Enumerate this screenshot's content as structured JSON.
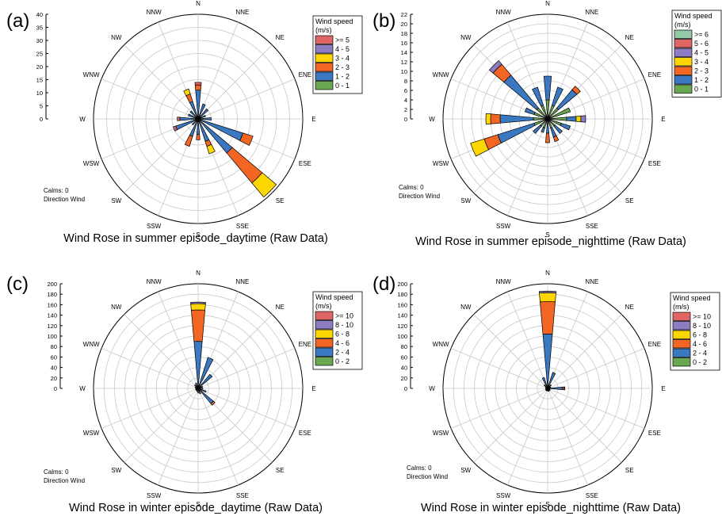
{
  "colors": {
    "green": "#6aa84f",
    "blue": "#3a78c2",
    "orange": "#f26522",
    "yellow": "#ffd700",
    "purple": "#8e7cc3",
    "red": "#e06666",
    "teal": "#93c9a6",
    "grid": "#c8c8c8",
    "axis": "#000000"
  },
  "compass": [
    "N",
    "NNE",
    "NE",
    "ENE",
    "E",
    "ESE",
    "SE",
    "SSE",
    "S",
    "SSW",
    "SW",
    "WSW",
    "W",
    "WNW",
    "NW",
    "NNW"
  ],
  "chart_data": [
    {
      "panel_label": "(a)",
      "type": "wind-rose",
      "title": "Wind Rose in summer episode_daytime (Raw Data)",
      "legend_title": [
        "Wind speed",
        "(m/s)"
      ],
      "calms_text": "Calms: 0",
      "direction_text": "Direction Wind",
      "rmax": 40,
      "rings": [
        5,
        10,
        15,
        20,
        25,
        30,
        35,
        40
      ],
      "ticks": [
        0,
        5,
        10,
        15,
        20,
        25,
        30,
        35,
        40
      ],
      "bins": [
        {
          "label": ">= 5",
          "color": "red"
        },
        {
          "label": "4 - 5",
          "color": "purple"
        },
        {
          "label": "3 - 4",
          "color": "yellow"
        },
        {
          "label": "2 - 3",
          "color": "orange"
        },
        {
          "label": "1 - 2",
          "color": "blue"
        },
        {
          "label": "0 - 1",
          "color": "green"
        }
      ],
      "series": [
        {
          "direction": "N",
          "values": [
            1,
            10,
            2,
            0,
            0,
            1
          ]
        },
        {
          "direction": "NNE",
          "values": [
            1,
            5,
            0,
            0,
            0,
            0
          ]
        },
        {
          "direction": "NE",
          "values": [
            1,
            4,
            0,
            0,
            0,
            0
          ]
        },
        {
          "direction": "ENE",
          "values": [
            1,
            2,
            0,
            0,
            0,
            0
          ]
        },
        {
          "direction": "E",
          "values": [
            1,
            4,
            0,
            0,
            0,
            0
          ]
        },
        {
          "direction": "ESE",
          "values": [
            1,
            17,
            4,
            0,
            0,
            0
          ]
        },
        {
          "direction": "SE",
          "values": [
            1,
            16,
            15,
            7,
            0,
            0
          ]
        },
        {
          "direction": "SSE",
          "values": [
            1,
            8,
            2,
            3,
            0,
            0
          ]
        },
        {
          "direction": "S",
          "values": [
            1,
            5,
            2,
            0,
            0,
            0
          ]
        },
        {
          "direction": "SSW",
          "values": [
            1,
            6,
            4,
            0,
            0,
            0
          ]
        },
        {
          "direction": "SW",
          "values": [
            1,
            2,
            0,
            0,
            0,
            0
          ]
        },
        {
          "direction": "WSW",
          "values": [
            1,
            8,
            0,
            0,
            0,
            1
          ]
        },
        {
          "direction": "W",
          "values": [
            1,
            6,
            0,
            0,
            0,
            1
          ]
        },
        {
          "direction": "WNW",
          "values": [
            1,
            3,
            0,
            0,
            0,
            0
          ]
        },
        {
          "direction": "NW",
          "values": [
            1,
            3,
            0,
            0,
            0,
            0
          ]
        },
        {
          "direction": "NNW",
          "values": [
            1,
            6,
            3,
            2,
            0,
            0
          ]
        }
      ]
    },
    {
      "panel_label": "(b)",
      "type": "wind-rose",
      "title": "Wind Rose in summer episode_nighttime (Raw Data)",
      "legend_title": [
        "Wind speed",
        "(m/s)"
      ],
      "calms_text": "Calms: 0",
      "direction_text": "Direction Wind",
      "rmax": 22,
      "rings": [
        2,
        4,
        6,
        8,
        10,
        12,
        14,
        16,
        18,
        20,
        22
      ],
      "ticks": [
        0,
        2,
        4,
        6,
        8,
        10,
        12,
        14,
        16,
        18,
        20,
        22
      ],
      "bins": [
        {
          "label": ">= 6",
          "color": "teal"
        },
        {
          "label": "5 - 6",
          "color": "red"
        },
        {
          "label": "4 - 5",
          "color": "purple"
        },
        {
          "label": "3 - 4",
          "color": "yellow"
        },
        {
          "label": "2 - 3",
          "color": "orange"
        },
        {
          "label": "1 - 2",
          "color": "blue"
        },
        {
          "label": "0 - 1",
          "color": "green"
        }
      ],
      "series": [
        {
          "direction": "N",
          "values": [
            4,
            5,
            0,
            0,
            0,
            0,
            0
          ]
        },
        {
          "direction": "NNE",
          "values": [
            3,
            4,
            0,
            0,
            0,
            0,
            0
          ]
        },
        {
          "direction": "NE",
          "values": [
            3,
            5,
            1,
            0,
            0,
            0,
            0
          ]
        },
        {
          "direction": "ENE",
          "values": [
            5,
            0,
            0,
            0,
            0,
            0,
            0
          ]
        },
        {
          "direction": "E",
          "values": [
            4,
            2,
            0,
            1,
            1,
            0,
            0
          ]
        },
        {
          "direction": "ESE",
          "values": [
            3,
            2,
            0,
            0,
            0,
            0,
            0
          ]
        },
        {
          "direction": "SE",
          "values": [
            2,
            2,
            0,
            0,
            0,
            0,
            0
          ]
        },
        {
          "direction": "SSE",
          "values": [
            2,
            2,
            1,
            0,
            0,
            0,
            0
          ]
        },
        {
          "direction": "S",
          "values": [
            1,
            2,
            2,
            0,
            0,
            0,
            0
          ]
        },
        {
          "direction": "SSW",
          "values": [
            2,
            1,
            0,
            0,
            0,
            0,
            0
          ]
        },
        {
          "direction": "SW",
          "values": [
            2,
            2,
            0,
            0,
            0,
            0,
            0
          ]
        },
        {
          "direction": "WSW",
          "values": [
            3,
            8,
            3,
            3,
            0,
            0,
            0
          ]
        },
        {
          "direction": "W",
          "values": [
            3,
            7,
            2,
            1,
            0,
            0,
            0
          ]
        },
        {
          "direction": "WNW",
          "values": [
            3,
            2,
            0,
            0,
            0,
            0,
            0
          ]
        },
        {
          "direction": "NW",
          "values": [
            3,
            9,
            3,
            0,
            1,
            0,
            0
          ]
        },
        {
          "direction": "NNW",
          "values": [
            3,
            4,
            0,
            0,
            0,
            0,
            0
          ]
        }
      ]
    },
    {
      "panel_label": "(c)",
      "type": "wind-rose",
      "title": "Wind Rose in winter episode_daytime (Raw Data)",
      "legend_title": [
        "Wind speed",
        "(m/s)"
      ],
      "calms_text": "Calms: 0",
      "direction_text": "Direction Wind",
      "rmax": 200,
      "rings": [
        20,
        40,
        60,
        80,
        100,
        120,
        140,
        160,
        180,
        200
      ],
      "ticks": [
        0,
        20,
        40,
        60,
        80,
        100,
        120,
        140,
        160,
        180,
        200
      ],
      "bins": [
        {
          "label": ">= 10",
          "color": "red"
        },
        {
          "label": "8 - 10",
          "color": "purple"
        },
        {
          "label": "6 - 8",
          "color": "yellow"
        },
        {
          "label": "4 - 6",
          "color": "orange"
        },
        {
          "label": "2 - 4",
          "color": "blue"
        },
        {
          "label": "0 - 2",
          "color": "green"
        }
      ],
      "series": [
        {
          "direction": "N",
          "values": [
            2,
            88,
            60,
            12,
            3,
            0
          ]
        },
        {
          "direction": "NNE",
          "values": [
            2,
            60,
            0,
            0,
            0,
            0
          ]
        },
        {
          "direction": "NE",
          "values": [
            2,
            33,
            0,
            0,
            0,
            0
          ]
        },
        {
          "direction": "ENE",
          "values": [
            1,
            8,
            0,
            0,
            0,
            0
          ]
        },
        {
          "direction": "E",
          "values": [
            1,
            8,
            0,
            0,
            0,
            0
          ]
        },
        {
          "direction": "ESE",
          "values": [
            1,
            15,
            0,
            0,
            0,
            0
          ]
        },
        {
          "direction": "SE",
          "values": [
            2,
            36,
            4,
            0,
            0,
            0
          ]
        },
        {
          "direction": "SSE",
          "values": [
            1,
            10,
            0,
            0,
            0,
            0
          ]
        },
        {
          "direction": "S",
          "values": [
            1,
            8,
            0,
            0,
            0,
            0
          ]
        },
        {
          "direction": "SSW",
          "values": [
            1,
            5,
            0,
            0,
            0,
            0
          ]
        },
        {
          "direction": "SW",
          "values": [
            1,
            4,
            0,
            0,
            0,
            0
          ]
        },
        {
          "direction": "WSW",
          "values": [
            1,
            4,
            0,
            0,
            0,
            0
          ]
        },
        {
          "direction": "W",
          "values": [
            1,
            4,
            0,
            0,
            0,
            0
          ]
        },
        {
          "direction": "WNW",
          "values": [
            1,
            5,
            0,
            0,
            0,
            0
          ]
        },
        {
          "direction": "NW",
          "values": [
            1,
            8,
            0,
            0,
            0,
            0
          ]
        },
        {
          "direction": "NNW",
          "values": [
            1,
            10,
            0,
            0,
            0,
            0
          ]
        }
      ]
    },
    {
      "panel_label": "(d)",
      "type": "wind-rose",
      "title": "Wind Rose in winter episode_nighttime (Raw Data)",
      "legend_title": [
        "Wind speed",
        "(m/s)"
      ],
      "calms_text": "Calms: 0",
      "direction_text": "Direction Wind",
      "rmax": 200,
      "rings": [
        20,
        40,
        60,
        80,
        100,
        120,
        140,
        160,
        180,
        200
      ],
      "ticks": [
        0,
        20,
        40,
        60,
        80,
        100,
        120,
        140,
        160,
        180,
        200
      ],
      "bins": [
        {
          "label": ">= 10",
          "color": "red"
        },
        {
          "label": "8 - 10",
          "color": "purple"
        },
        {
          "label": "6 - 8",
          "color": "yellow"
        },
        {
          "label": "4 - 6",
          "color": "orange"
        },
        {
          "label": "2 - 4",
          "color": "blue"
        },
        {
          "label": "0 - 2",
          "color": "green"
        }
      ],
      "series": [
        {
          "direction": "N",
          "values": [
            2,
            102,
            62,
            17,
            3,
            0
          ]
        },
        {
          "direction": "NNE",
          "values": [
            2,
            30,
            0,
            0,
            0,
            0
          ]
        },
        {
          "direction": "NE",
          "values": [
            1,
            8,
            0,
            0,
            0,
            0
          ]
        },
        {
          "direction": "ENE",
          "values": [
            1,
            5,
            0,
            0,
            0,
            0
          ]
        },
        {
          "direction": "E",
          "values": [
            2,
            26,
            3,
            0,
            0,
            2
          ]
        },
        {
          "direction": "ESE",
          "values": [
            1,
            4,
            0,
            0,
            0,
            0
          ]
        },
        {
          "direction": "SE",
          "values": [
            1,
            5,
            0,
            0,
            0,
            0
          ]
        },
        {
          "direction": "SSE",
          "values": [
            1,
            5,
            0,
            0,
            0,
            0
          ]
        },
        {
          "direction": "S",
          "values": [
            1,
            4,
            0,
            0,
            0,
            0
          ]
        },
        {
          "direction": "SSW",
          "values": [
            1,
            4,
            0,
            0,
            0,
            0
          ]
        },
        {
          "direction": "SW",
          "values": [
            1,
            4,
            0,
            0,
            0,
            0
          ]
        },
        {
          "direction": "WSW",
          "values": [
            1,
            3,
            0,
            0,
            0,
            0
          ]
        },
        {
          "direction": "W",
          "values": [
            1,
            3,
            0,
            0,
            0,
            0
          ]
        },
        {
          "direction": "WNW",
          "values": [
            1,
            3,
            0,
            0,
            0,
            0
          ]
        },
        {
          "direction": "NW",
          "values": [
            1,
            8,
            0,
            0,
            0,
            0
          ]
        },
        {
          "direction": "NNW",
          "values": [
            2,
            20,
            0,
            0,
            0,
            0
          ]
        }
      ]
    }
  ]
}
